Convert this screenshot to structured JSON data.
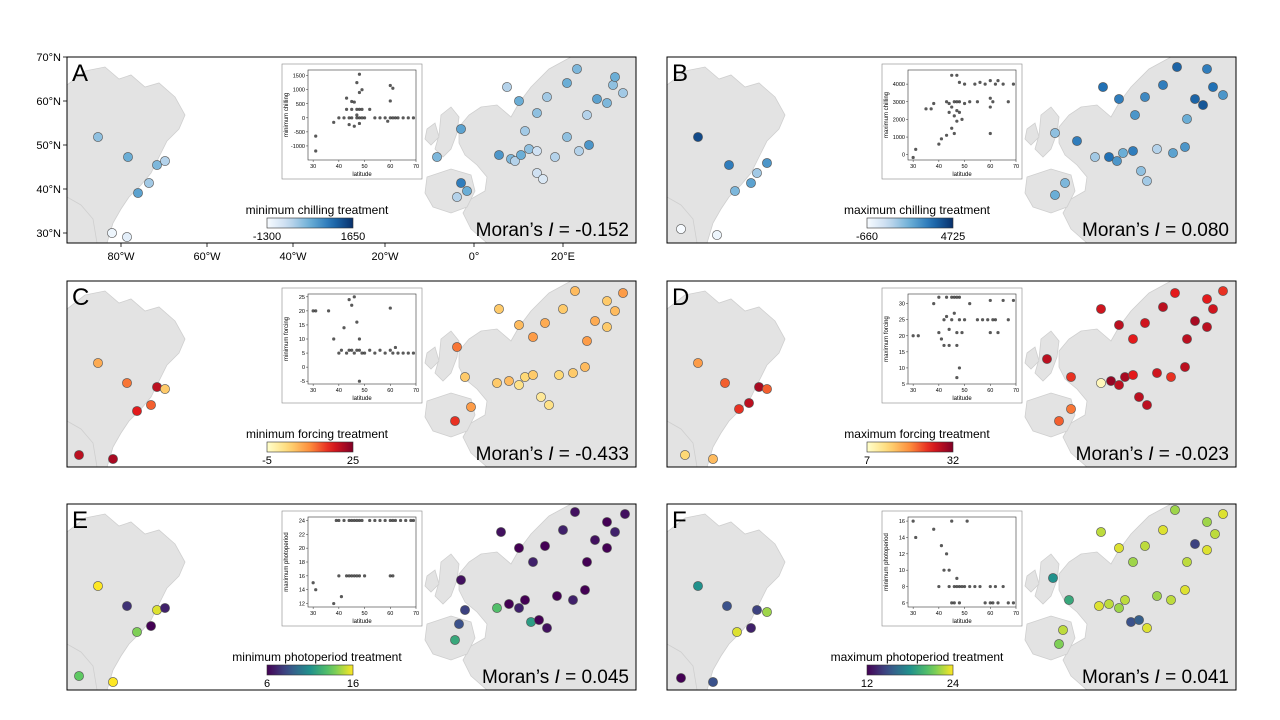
{
  "figure": {
    "panels": [
      {
        "letter": "A",
        "legend_title": "minimum  chilling  treatment",
        "legend_min": "-1300",
        "legend_max": "1650",
        "moran_prefix": "Moran’s ",
        "moran_I": "I",
        "moran_value": " = -0.152",
        "colormap": "blues",
        "inset": {
          "xlabel": "latitude",
          "ylabel": "minimum chilling",
          "xticks": [
            "30",
            "40",
            "50",
            "60",
            "70"
          ],
          "yticks": [
            "-1000",
            "-500",
            "0",
            "500",
            "1000",
            "1500"
          ]
        }
      },
      {
        "letter": "B",
        "legend_title": "maximum  chilling  treatment",
        "legend_min": "-660",
        "legend_max": "4725",
        "moran_prefix": "Moran’s ",
        "moran_I": "I",
        "moran_value": " = 0.080",
        "colormap": "blues",
        "inset": {
          "xlabel": "latitude",
          "ylabel": "maximum chilling",
          "xticks": [
            "30",
            "40",
            "50",
            "60",
            "70"
          ],
          "yticks": [
            "0",
            "1000",
            "2000",
            "3000",
            "4000"
          ]
        }
      },
      {
        "letter": "C",
        "legend_title": "minimum  forcing  treatment",
        "legend_min": "-5",
        "legend_max": "25",
        "moran_prefix": "Moran’s ",
        "moran_I": "I",
        "moran_value": " = -0.433",
        "colormap": "ylorrd",
        "inset": {
          "xlabel": "latitude",
          "ylabel": "minimum forcing",
          "xticks": [
            "30",
            "40",
            "50",
            "60",
            "70"
          ],
          "yticks": [
            "-5",
            "0",
            "5",
            "10",
            "15",
            "20",
            "25"
          ]
        }
      },
      {
        "letter": "D",
        "legend_title": "maximum  forcing  treatment",
        "legend_min": "7",
        "legend_max": "32",
        "moran_prefix": "Moran’s ",
        "moran_I": "I",
        "moran_value": " = -0.023",
        "colormap": "ylorrd",
        "inset": {
          "xlabel": "latitude",
          "ylabel": "maximum forcing",
          "xticks": [
            "30",
            "40",
            "50",
            "60",
            "70"
          ],
          "yticks": [
            "5",
            "10",
            "15",
            "20",
            "25",
            "30"
          ]
        }
      },
      {
        "letter": "E",
        "legend_title": "minimum  photoperiod  treatment",
        "legend_min": "6",
        "legend_max": "16",
        "moran_prefix": "Moran’s ",
        "moran_I": "I",
        "moran_value": " = 0.045",
        "colormap": "viridis",
        "inset": {
          "xlabel": "latitude",
          "ylabel": "maximum photoperiod",
          "xticks": [
            "30",
            "40",
            "50",
            "60",
            "70"
          ],
          "yticks": [
            "12",
            "14",
            "16",
            "18",
            "20",
            "22",
            "24"
          ]
        }
      },
      {
        "letter": "F",
        "legend_title": "maximum  photoperiod  treatment",
        "legend_min": "12",
        "legend_max": "24",
        "moran_prefix": "Moran’s ",
        "moran_I": "I",
        "moran_value": " = 0.041",
        "colormap": "viridis",
        "inset": {
          "xlabel": "latitude",
          "ylabel": "minimum photoperiod",
          "xticks": [
            "30",
            "40",
            "50",
            "60",
            "70"
          ],
          "yticks": [
            "6",
            "8",
            "10",
            "12",
            "14",
            "16"
          ]
        }
      }
    ],
    "lat_ticks": [
      "70°N",
      "60°N",
      "50°N",
      "40°N",
      "30°N"
    ],
    "lon_ticks": [
      "80°W",
      "60°W",
      "40°W",
      "20°W",
      "0°",
      "20°E"
    ]
  },
  "chart_data": [
    {
      "type": "scatter",
      "panel": "A",
      "xlabel": "latitude",
      "ylabel": "minimum chilling",
      "xlim": [
        28,
        70
      ],
      "ylim": [
        -1500,
        1700
      ],
      "points": [
        [
          31,
          -650
        ],
        [
          31,
          -1180
        ],
        [
          38,
          -160
        ],
        [
          40,
          0
        ],
        [
          42,
          0
        ],
        [
          43,
          700
        ],
        [
          43,
          300
        ],
        [
          44,
          -240
        ],
        [
          44,
          0
        ],
        [
          45,
          580
        ],
        [
          45,
          300
        ],
        [
          45,
          0
        ],
        [
          46,
          560
        ],
        [
          46,
          -300
        ],
        [
          47,
          1250
        ],
        [
          47,
          300
        ],
        [
          47,
          100
        ],
        [
          47,
          0
        ],
        [
          48,
          1550
        ],
        [
          48,
          900
        ],
        [
          48,
          300
        ],
        [
          48,
          0
        ],
        [
          48,
          -200
        ],
        [
          49,
          1000
        ],
        [
          49,
          300
        ],
        [
          49,
          0
        ],
        [
          50,
          0
        ],
        [
          52,
          300
        ],
        [
          54,
          0
        ],
        [
          56,
          0
        ],
        [
          58,
          0
        ],
        [
          59,
          -120
        ],
        [
          60,
          1150
        ],
        [
          60,
          600
        ],
        [
          60,
          0
        ],
        [
          61,
          1050
        ],
        [
          61,
          0
        ],
        [
          62,
          0
        ],
        [
          63,
          0
        ],
        [
          65,
          0
        ],
        [
          67,
          0
        ],
        [
          69,
          0
        ]
      ]
    },
    {
      "type": "scatter",
      "panel": "B",
      "xlabel": "latitude",
      "ylabel": "maximum chilling",
      "xlim": [
        28,
        70
      ],
      "ylim": [
        -300,
        4800
      ],
      "points": [
        [
          30,
          -160
        ],
        [
          31,
          300
        ],
        [
          35,
          2600
        ],
        [
          37,
          2600
        ],
        [
          38,
          2900
        ],
        [
          40,
          600
        ],
        [
          41,
          900
        ],
        [
          43,
          3000
        ],
        [
          43,
          1100
        ],
        [
          44,
          2900
        ],
        [
          44,
          2400
        ],
        [
          45,
          4500
        ],
        [
          45,
          2700
        ],
        [
          45,
          1500
        ],
        [
          46,
          3000
        ],
        [
          46,
          2200
        ],
        [
          46,
          1200
        ],
        [
          47,
          4500
        ],
        [
          47,
          3000
        ],
        [
          47,
          2500
        ],
        [
          47,
          1900
        ],
        [
          48,
          3000
        ],
        [
          48,
          4100
        ],
        [
          48,
          2400
        ],
        [
          49,
          2000
        ],
        [
          50,
          4000
        ],
        [
          50,
          2900
        ],
        [
          52,
          3000
        ],
        [
          54,
          4000
        ],
        [
          55,
          3000
        ],
        [
          56,
          4100
        ],
        [
          58,
          4000
        ],
        [
          60,
          4200
        ],
        [
          60,
          3200
        ],
        [
          60,
          2700
        ],
        [
          60,
          1200
        ],
        [
          61,
          3000
        ],
        [
          62,
          4000
        ],
        [
          63,
          4200
        ],
        [
          65,
          4000
        ],
        [
          67,
          3000
        ],
        [
          69,
          4000
        ]
      ]
    },
    {
      "type": "scatter",
      "panel": "C",
      "xlabel": "latitude",
      "ylabel": "minimum forcing",
      "xlim": [
        28,
        70
      ],
      "ylim": [
        -6,
        26
      ],
      "points": [
        [
          30,
          20
        ],
        [
          31,
          20
        ],
        [
          36,
          20
        ],
        [
          38,
          10
        ],
        [
          40,
          5
        ],
        [
          41,
          6
        ],
        [
          42,
          14
        ],
        [
          43,
          5
        ],
        [
          44,
          6
        ],
        [
          44,
          24
        ],
        [
          45,
          22
        ],
        [
          45,
          6
        ],
        [
          46,
          25
        ],
        [
          46,
          5
        ],
        [
          47,
          6
        ],
        [
          47,
          16
        ],
        [
          48,
          6
        ],
        [
          48,
          -5
        ],
        [
          48,
          10
        ],
        [
          49,
          5
        ],
        [
          50,
          5
        ],
        [
          52,
          6
        ],
        [
          54,
          5
        ],
        [
          56,
          6
        ],
        [
          58,
          5
        ],
        [
          60,
          6
        ],
        [
          60,
          21
        ],
        [
          61,
          5
        ],
        [
          62,
          7
        ],
        [
          63,
          5
        ],
        [
          65,
          5
        ],
        [
          67,
          5
        ],
        [
          69,
          5
        ]
      ]
    },
    {
      "type": "scatter",
      "panel": "D",
      "xlabel": "latitude",
      "ylabel": "maximum forcing",
      "xlim": [
        28,
        70
      ],
      "ylim": [
        5,
        33
      ],
      "points": [
        [
          30,
          20
        ],
        [
          32,
          20
        ],
        [
          38,
          30
        ],
        [
          40,
          32
        ],
        [
          40,
          21
        ],
        [
          41,
          19
        ],
        [
          42,
          25
        ],
        [
          42,
          17
        ],
        [
          43,
          32
        ],
        [
          43,
          26
        ],
        [
          44,
          22
        ],
        [
          44,
          17
        ],
        [
          45,
          32
        ],
        [
          45,
          25
        ],
        [
          46,
          32
        ],
        [
          46,
          27
        ],
        [
          47,
          32
        ],
        [
          47,
          21
        ],
        [
          47,
          17
        ],
        [
          47,
          7
        ],
        [
          48,
          25
        ],
        [
          48,
          32
        ],
        [
          48,
          10
        ],
        [
          49,
          21
        ],
        [
          50,
          25
        ],
        [
          52,
          30
        ],
        [
          55,
          25
        ],
        [
          57,
          25
        ],
        [
          59,
          25
        ],
        [
          60,
          21
        ],
        [
          60,
          31
        ],
        [
          61,
          25
        ],
        [
          62,
          25
        ],
        [
          63,
          21
        ],
        [
          65,
          31
        ],
        [
          67,
          25
        ],
        [
          69,
          31
        ]
      ]
    },
    {
      "type": "scatter",
      "panel": "E",
      "xlabel": "latitude",
      "ylabel": "maximum photoperiod",
      "xlim": [
        28,
        70
      ],
      "ylim": [
        11.5,
        24.5
      ],
      "points": [
        [
          30,
          15
        ],
        [
          31,
          14
        ],
        [
          38,
          12
        ],
        [
          39,
          24
        ],
        [
          40,
          24
        ],
        [
          40,
          16
        ],
        [
          41,
          13
        ],
        [
          42,
          24
        ],
        [
          43,
          16
        ],
        [
          44,
          24
        ],
        [
          44,
          16
        ],
        [
          45,
          24
        ],
        [
          45,
          16
        ],
        [
          46,
          24
        ],
        [
          46,
          16
        ],
        [
          47,
          24
        ],
        [
          47,
          16
        ],
        [
          48,
          16
        ],
        [
          48,
          24
        ],
        [
          49,
          24
        ],
        [
          50,
          16
        ],
        [
          52,
          24
        ],
        [
          54,
          24
        ],
        [
          56,
          24
        ],
        [
          58,
          24
        ],
        [
          60,
          24
        ],
        [
          60,
          16
        ],
        [
          61,
          24
        ],
        [
          61,
          16
        ],
        [
          62,
          24
        ],
        [
          64,
          24
        ],
        [
          66,
          24
        ],
        [
          68,
          24
        ],
        [
          69,
          24
        ]
      ]
    },
    {
      "type": "scatter",
      "panel": "F",
      "xlabel": "latitude",
      "ylabel": "minimum photoperiod",
      "xlim": [
        28,
        70
      ],
      "ylim": [
        5.5,
        16.5
      ],
      "points": [
        [
          30,
          16
        ],
        [
          31,
          14
        ],
        [
          38,
          15
        ],
        [
          40,
          8
        ],
        [
          41,
          13
        ],
        [
          42,
          10
        ],
        [
          43,
          12
        ],
        [
          44,
          10
        ],
        [
          44,
          8
        ],
        [
          45,
          16
        ],
        [
          45,
          6
        ],
        [
          46,
          8
        ],
        [
          46,
          6
        ],
        [
          47,
          9
        ],
        [
          47,
          8
        ],
        [
          48,
          8
        ],
        [
          48,
          6
        ],
        [
          49,
          8
        ],
        [
          50,
          8
        ],
        [
          51,
          16
        ],
        [
          52,
          8
        ],
        [
          54,
          8
        ],
        [
          56,
          8
        ],
        [
          58,
          6
        ],
        [
          60,
          6
        ],
        [
          60,
          8
        ],
        [
          61,
          6
        ],
        [
          62,
          8
        ],
        [
          63,
          6
        ],
        [
          65,
          8
        ],
        [
          67,
          6
        ],
        [
          69,
          6
        ]
      ]
    }
  ]
}
